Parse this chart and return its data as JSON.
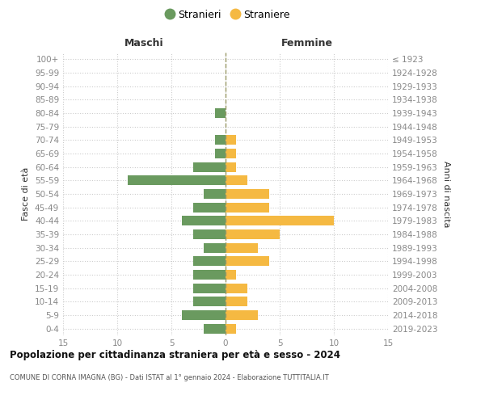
{
  "age_groups": [
    "100+",
    "95-99",
    "90-94",
    "85-89",
    "80-84",
    "75-79",
    "70-74",
    "65-69",
    "60-64",
    "55-59",
    "50-54",
    "45-49",
    "40-44",
    "35-39",
    "30-34",
    "25-29",
    "20-24",
    "15-19",
    "10-14",
    "5-9",
    "0-4"
  ],
  "birth_years": [
    "≤ 1923",
    "1924-1928",
    "1929-1933",
    "1934-1938",
    "1939-1943",
    "1944-1948",
    "1949-1953",
    "1954-1958",
    "1959-1963",
    "1964-1968",
    "1969-1973",
    "1974-1978",
    "1979-1983",
    "1984-1988",
    "1989-1993",
    "1994-1998",
    "1999-2003",
    "2004-2008",
    "2009-2013",
    "2014-2018",
    "2019-2023"
  ],
  "males": [
    0,
    0,
    0,
    0,
    1,
    0,
    1,
    1,
    3,
    9,
    2,
    3,
    4,
    3,
    2,
    3,
    3,
    3,
    3,
    4,
    2
  ],
  "females": [
    0,
    0,
    0,
    0,
    0,
    0,
    1,
    1,
    1,
    2,
    4,
    4,
    10,
    5,
    3,
    4,
    1,
    2,
    2,
    3,
    1
  ],
  "male_color": "#6a9a5f",
  "female_color": "#f5b942",
  "title": "Popolazione per cittadinanza straniera per età e sesso - 2024",
  "subtitle": "COMUNE DI CORNA IMAGNA (BG) - Dati ISTAT al 1° gennaio 2024 - Elaborazione TUTTITALIA.IT",
  "xlabel_left": "Maschi",
  "xlabel_right": "Femmine",
  "ylabel_left": "Fasce di età",
  "ylabel_right": "Anni di nascita",
  "legend_male": "Stranieri",
  "legend_female": "Straniere",
  "xlim": 15,
  "bg_color": "#ffffff",
  "grid_color": "#cccccc",
  "tick_label_color": "#888888",
  "header_color": "#333333",
  "title_color": "#111111",
  "subtitle_color": "#555555",
  "zeroline_color": "#999966"
}
